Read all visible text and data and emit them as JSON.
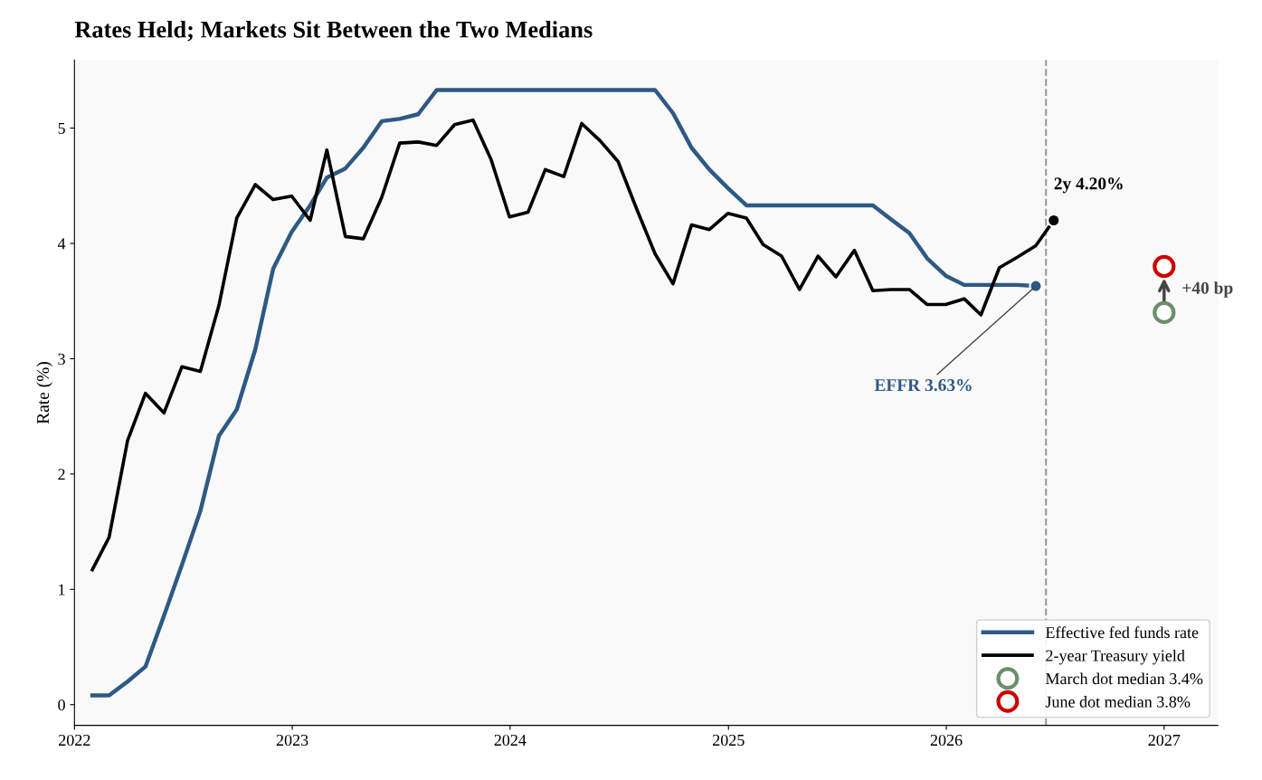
{
  "chart_data": {
    "type": "line",
    "title": "Rates Held; Markets Sit Between the Two Medians",
    "ylabel": "Rate (%)",
    "x": [
      "2022-01-31",
      "2022-02-28",
      "2022-03-31",
      "2022-04-30",
      "2022-05-31",
      "2022-06-30",
      "2022-07-31",
      "2022-08-31",
      "2022-09-30",
      "2022-10-31",
      "2022-11-30",
      "2022-12-31",
      "2023-01-31",
      "2023-02-28",
      "2023-03-31",
      "2023-04-30",
      "2023-05-31",
      "2023-06-30",
      "2023-07-31",
      "2023-08-31",
      "2023-09-30",
      "2023-10-31",
      "2023-11-30",
      "2023-12-31",
      "2024-01-31",
      "2024-02-29",
      "2024-03-31",
      "2024-04-30",
      "2024-05-31",
      "2024-06-30",
      "2024-07-31",
      "2024-08-31",
      "2024-09-30",
      "2024-10-31",
      "2024-11-30",
      "2024-12-31",
      "2025-01-31",
      "2025-02-28",
      "2025-03-31",
      "2025-04-30",
      "2025-05-31",
      "2025-06-30",
      "2025-07-31",
      "2025-08-31",
      "2025-09-30",
      "2025-10-31",
      "2025-11-30",
      "2025-12-31",
      "2026-01-31",
      "2026-02-28",
      "2026-03-31",
      "2026-04-30",
      "2026-05-31",
      "2026-06-30"
    ],
    "series": [
      {
        "name": "Effective fed funds rate",
        "color": "#2e5984",
        "values": [
          0.08,
          0.08,
          0.2,
          0.33,
          0.77,
          1.21,
          1.68,
          2.33,
          2.56,
          3.08,
          3.78,
          4.1,
          4.33,
          4.57,
          4.65,
          4.83,
          5.06,
          5.08,
          5.12,
          5.33,
          5.33,
          5.33,
          5.33,
          5.33,
          5.33,
          5.33,
          5.33,
          5.33,
          5.33,
          5.33,
          5.33,
          5.33,
          5.13,
          4.83,
          4.64,
          4.48,
          4.33,
          4.33,
          4.33,
          4.33,
          4.33,
          4.33,
          4.33,
          4.33,
          4.21,
          4.09,
          3.87,
          3.72,
          3.64,
          3.64,
          3.64,
          3.64,
          3.63,
          null
        ]
      },
      {
        "name": "2-year Treasury yield",
        "color": "#000000",
        "values": [
          1.17,
          1.45,
          2.29,
          2.7,
          2.53,
          2.93,
          2.89,
          3.46,
          4.22,
          4.51,
          4.38,
          4.41,
          4.2,
          4.81,
          4.06,
          4.04,
          4.4,
          4.87,
          4.88,
          4.85,
          5.03,
          5.07,
          4.73,
          4.23,
          4.27,
          4.64,
          4.58,
          5.04,
          4.89,
          4.71,
          4.3,
          3.91,
          3.65,
          4.16,
          4.12,
          4.26,
          4.22,
          3.99,
          3.89,
          3.6,
          3.89,
          3.71,
          3.94,
          3.59,
          3.6,
          3.6,
          3.47,
          3.47,
          3.52,
          3.38,
          3.79,
          3.88,
          3.98,
          4.2
        ]
      },
      {
        "name": "March dot median 3.4%",
        "type": "scatter",
        "marker": "circle",
        "color": "#6b8e6b",
        "x": [
          "2027-01-01"
        ],
        "values": [
          3.4
        ]
      },
      {
        "name": "June dot median 3.8%",
        "type": "scatter",
        "marker": "circle",
        "color": "#cc0000",
        "x": [
          "2027-01-01"
        ],
        "values": [
          3.8
        ]
      }
    ],
    "xlim": [
      "2022-01-01",
      "2027-04-01"
    ],
    "xticks": [
      {
        "value": "2022-01-01",
        "label": "2022"
      },
      {
        "value": "2023-01-01",
        "label": "2023"
      },
      {
        "value": "2024-01-01",
        "label": "2024"
      },
      {
        "value": "2025-01-01",
        "label": "2025"
      },
      {
        "value": "2026-01-01",
        "label": "2026"
      },
      {
        "value": "2027-01-01",
        "label": "2027"
      }
    ],
    "ylim": [
      -0.18,
      5.59
    ],
    "yticks": [
      0,
      1,
      2,
      3,
      4,
      5
    ],
    "ref_lines": [
      {
        "axis": "x",
        "value": "2026-06-17",
        "color": "#999999",
        "line_style": "dashed"
      }
    ],
    "annotations": [
      {
        "text": "EFFR 3.63%",
        "x": "2026-05-31",
        "y": 3.63
      },
      {
        "text": "2y 4.20%",
        "x": "2026-06-30",
        "y": 4.2
      },
      "+40 bp"
    ],
    "grid": false,
    "legend": "bottom right",
    "line_style": "solid",
    "marker": "none"
  }
}
